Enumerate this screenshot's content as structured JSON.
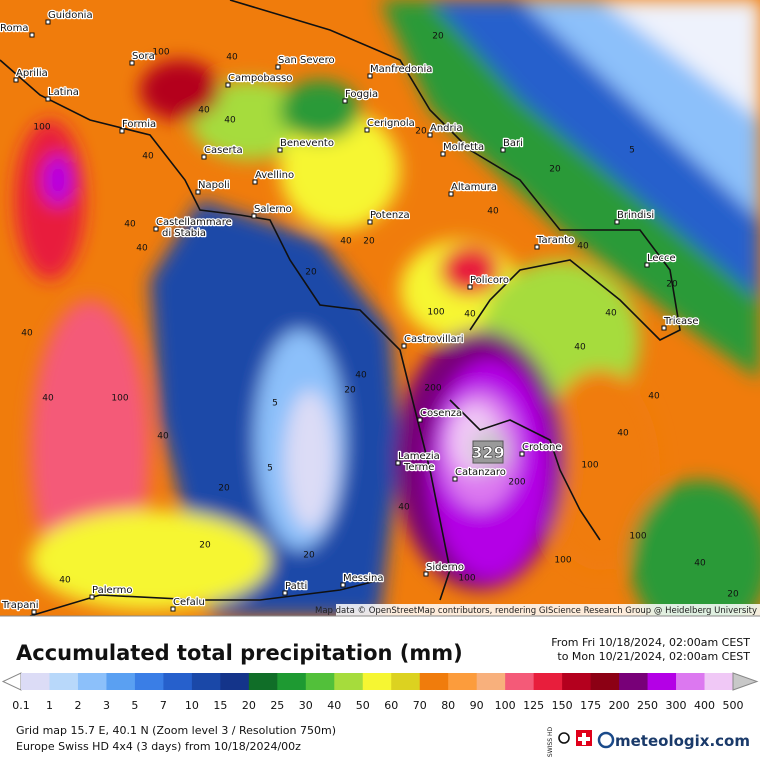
{
  "map": {
    "cities": [
      "Guidonia",
      "Roma",
      "Aprilia",
      "Latina",
      "Sora",
      "Campobasso",
      "San Severo",
      "Manfredonia",
      "Foggia",
      "Formia",
      "Cerignola",
      "Andria",
      "Molfetta",
      "Bari",
      "Caserta",
      "Benevento",
      "Napoli",
      "Avellino",
      "Altamura",
      "Castellammare di Stabia",
      "Salerno",
      "Potenza",
      "Brindisi",
      "Taranto",
      "Lecce",
      "Policoro",
      "Tricase",
      "Castrovillari",
      "Cosenza",
      "Crotone",
      "Lamezia Terme",
      "Catanzaro",
      "Siderno",
      "Messina",
      "Patti",
      "Palermo",
      "Cefalu",
      "Trapani"
    ],
    "contour_labels": [
      "100",
      "40",
      "40",
      "20",
      "100",
      "40",
      "40",
      "5",
      "20",
      "20",
      "40",
      "40",
      "20",
      "40",
      "40",
      "40",
      "20",
      "20",
      "100",
      "40",
      "40",
      "40",
      "100",
      "40",
      "5",
      "5",
      "40",
      "40",
      "40",
      "100",
      "200",
      "200",
      "20",
      "100",
      "20",
      "40",
      "40",
      "100",
      "20",
      "100",
      "40",
      "40",
      "20",
      "40",
      "20"
    ],
    "max_label": "329",
    "attribution": "Map data © OpenStreetMap contributors, rendering GIScience Research Group @ Heidelberg University"
  },
  "legend": {
    "title": "Accumulated total precipitation (mm)",
    "period_from": "From Fri 10/18/2024, 02:00am CEST",
    "period_to": "to Mon 10/21/2024, 02:00am CEST",
    "scale": [
      0.1,
      1,
      2,
      3,
      5,
      7,
      10,
      15,
      20,
      25,
      30,
      40,
      50,
      60,
      70,
      80,
      90,
      100,
      125,
      150,
      175,
      200,
      250,
      300,
      400,
      500
    ],
    "low_color": "#ffffff",
    "colors": [
      "#dcdcf6",
      "#b8d8fa",
      "#8cc0fa",
      "#5aa0f2",
      "#3a7ee6",
      "#2660cc",
      "#1a48a8",
      "#14348a",
      "#106e28",
      "#1e9a32",
      "#52c03a",
      "#a6dc3c",
      "#f6f632",
      "#dcd220",
      "#f07c0c",
      "#fc9c3c",
      "#f8b07c",
      "#f45a78",
      "#e81e3c",
      "#b4001e",
      "#8c0014",
      "#780078",
      "#b400e6",
      "#dc78f0",
      "#f0c8f6"
    ],
    "high_color": "#c8c8c8"
  },
  "footer": {
    "grid": "Grid map 15.7 E, 40.1 N (Zoom level 3 / Resolution 750m)",
    "model": "Europe Swiss HD 4x4 (3 days) from 10/18/2024/00z",
    "badge": "SWISS HD",
    "brand": "meteologix.com"
  }
}
